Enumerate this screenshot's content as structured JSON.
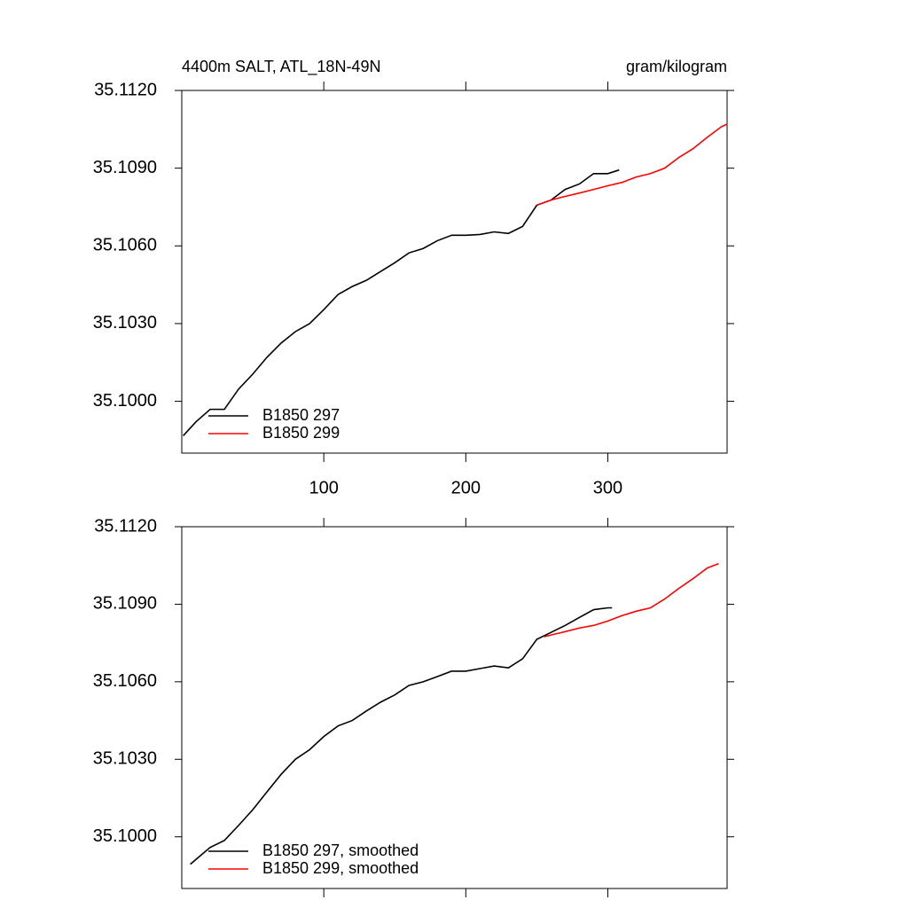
{
  "chart_data": [
    {
      "type": "line",
      "title": "4400m SALT, ATL_18N-49N",
      "units": "gram/kilogram",
      "xlim": [
        0,
        384
      ],
      "ylim": [
        35.098,
        35.112
      ],
      "xticks": [
        100,
        200,
        300
      ],
      "yticks": [
        {
          "value": 35.1,
          "label": "35.1000"
        },
        {
          "value": 35.103,
          "label": "35.1030"
        },
        {
          "value": 35.106,
          "label": "35.1060"
        },
        {
          "value": 35.109,
          "label": "35.1090"
        },
        {
          "value": 35.112,
          "label": "35.1120"
        }
      ],
      "series": [
        {
          "name": "B1850 297",
          "color": "#000000",
          "x": [
            1,
            10,
            20,
            30,
            40,
            50,
            60,
            70,
            80,
            90,
            100,
            110,
            120,
            130,
            140,
            150,
            160,
            170,
            180,
            190,
            200,
            210,
            220,
            230,
            240,
            250,
            260,
            270,
            280,
            290,
            300,
            308
          ],
          "values": [
            35.09867,
            35.09921,
            35.09969,
            35.09969,
            35.10047,
            35.10105,
            35.1017,
            35.10225,
            35.10269,
            35.103,
            35.10354,
            35.10412,
            35.10443,
            35.10467,
            35.10501,
            35.10535,
            35.10573,
            35.1059,
            35.1062,
            35.10641,
            35.10641,
            35.10644,
            35.10654,
            35.10648,
            35.10675,
            35.10757,
            35.10777,
            35.10818,
            35.10839,
            35.10879,
            35.10879,
            35.10893
          ]
        },
        {
          "name": "B1850 299",
          "color": "#ff0000",
          "x": [
            250,
            260,
            270,
            280,
            290,
            300,
            310,
            320,
            330,
            340,
            350,
            360,
            370,
            380,
            384
          ],
          "values": [
            35.10757,
            35.10777,
            35.10791,
            35.10804,
            35.10818,
            35.10832,
            35.10845,
            35.10866,
            35.10879,
            35.109,
            35.10941,
            35.10975,
            35.11019,
            35.1106,
            35.1107
          ]
        }
      ]
    },
    {
      "type": "line",
      "xlim": [
        0,
        384
      ],
      "ylim": [
        35.098,
        35.112
      ],
      "xticks": [
        100,
        200,
        300
      ],
      "yticks": [
        {
          "value": 35.1,
          "label": "35.1000"
        },
        {
          "value": 35.103,
          "label": "35.1030"
        },
        {
          "value": 35.106,
          "label": "35.1060"
        },
        {
          "value": 35.109,
          "label": "35.1090"
        },
        {
          "value": 35.112,
          "label": "35.1120"
        }
      ],
      "series": [
        {
          "name": "B1850 297, smoothed",
          "color": "#000000",
          "x": [
            6,
            20,
            30,
            40,
            50,
            60,
            70,
            80,
            90,
            100,
            110,
            120,
            130,
            140,
            150,
            160,
            170,
            180,
            190,
            200,
            210,
            220,
            230,
            240,
            250,
            260,
            270,
            280,
            290,
            300,
            303
          ],
          "values": [
            35.09894,
            35.09959,
            35.09986,
            35.10044,
            35.10105,
            35.10174,
            35.10242,
            35.103,
            35.10337,
            35.10388,
            35.10429,
            35.1045,
            35.10487,
            35.10521,
            35.10549,
            35.10586,
            35.106,
            35.1062,
            35.10641,
            35.10641,
            35.10651,
            35.10661,
            35.10654,
            35.10689,
            35.10764,
            35.10791,
            35.10818,
            35.10849,
            35.10879,
            35.10886,
            35.10886
          ]
        },
        {
          "name": "B1850 299, smoothed",
          "color": "#ff0000",
          "x": [
            255,
            260,
            270,
            280,
            290,
            300,
            310,
            320,
            330,
            340,
            350,
            360,
            370,
            378
          ],
          "values": [
            35.10774,
            35.10781,
            35.10794,
            35.10808,
            35.10818,
            35.10835,
            35.10856,
            35.10873,
            35.10886,
            35.1092,
            35.10961,
            35.10999,
            35.1104,
            35.11057
          ]
        }
      ]
    }
  ]
}
